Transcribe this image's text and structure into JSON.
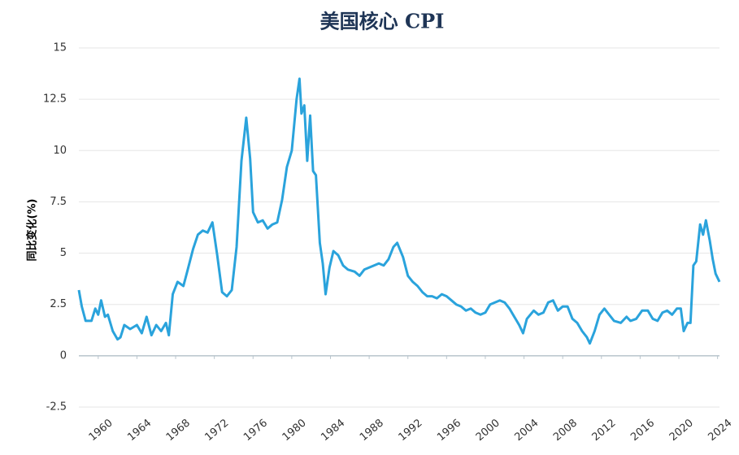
{
  "chart_data": {
    "type": "line",
    "title": "美国核心 CPI",
    "y_label": "同比变化(%)",
    "x": [
      1958.0,
      1958.3,
      1958.7,
      1959.3,
      1959.7,
      1960.0,
      1960.3,
      1960.7,
      1961.0,
      1961.5,
      1962.0,
      1962.3,
      1962.7,
      1963.3,
      1964.0,
      1964.5,
      1965.0,
      1965.5,
      1966.0,
      1966.5,
      1967.0,
      1967.3,
      1967.7,
      1968.2,
      1968.8,
      1969.2,
      1969.8,
      1970.3,
      1970.8,
      1971.3,
      1971.8,
      1972.3,
      1972.8,
      1973.3,
      1973.8,
      1974.3,
      1974.8,
      1975.3,
      1975.7,
      1976.0,
      1976.5,
      1977.0,
      1977.5,
      1978.0,
      1978.5,
      1979.0,
      1979.5,
      1980.0,
      1980.5,
      1980.8,
      1981.0,
      1981.3,
      1981.6,
      1981.9,
      1982.2,
      1982.5,
      1982.9,
      1983.2,
      1983.5,
      1983.9,
      1984.3,
      1984.8,
      1985.3,
      1985.8,
      1986.5,
      1987.0,
      1987.5,
      1988.0,
      1988.5,
      1989.0,
      1989.5,
      1990.0,
      1990.5,
      1990.9,
      1991.5,
      1992.0,
      1992.5,
      1993.0,
      1993.5,
      1994.0,
      1994.5,
      1995.0,
      1995.5,
      1996.0,
      1996.5,
      1997.0,
      1997.5,
      1998.0,
      1998.5,
      1999.0,
      1999.5,
      2000.0,
      2000.5,
      2001.0,
      2001.5,
      2002.0,
      2002.5,
      2003.0,
      2003.5,
      2003.9,
      2004.3,
      2005.0,
      2005.5,
      2006.0,
      2006.5,
      2007.0,
      2007.5,
      2008.0,
      2008.5,
      2009.0,
      2009.5,
      2010.0,
      2010.5,
      2010.8,
      2011.3,
      2011.8,
      2012.3,
      2012.8,
      2013.3,
      2014.0,
      2014.6,
      2015.0,
      2015.6,
      2016.2,
      2016.8,
      2017.3,
      2017.8,
      2018.3,
      2018.8,
      2019.3,
      2019.8,
      2020.2,
      2020.5,
      2020.9,
      2021.2,
      2021.5,
      2021.8,
      2022.2,
      2022.5,
      2022.8,
      2023.2,
      2023.5,
      2023.8,
      2024.2
    ],
    "series": [
      {
        "name": "核心CPI",
        "color": "#2aa3dc",
        "values": [
          3.2,
          2.4,
          1.7,
          1.7,
          2.3,
          2.0,
          2.7,
          1.9,
          2.0,
          1.2,
          0.8,
          0.9,
          1.5,
          1.3,
          1.5,
          1.1,
          1.9,
          1.0,
          1.5,
          1.2,
          1.6,
          1.0,
          3.0,
          3.6,
          3.4,
          4.1,
          5.2,
          5.9,
          6.1,
          6.0,
          6.5,
          4.9,
          3.1,
          2.9,
          3.2,
          5.3,
          9.5,
          11.6,
          9.6,
          7.0,
          6.5,
          6.6,
          6.2,
          6.4,
          6.5,
          7.6,
          9.2,
          10.0,
          12.5,
          13.5,
          11.8,
          12.2,
          9.5,
          11.7,
          9.0,
          8.8,
          5.5,
          4.5,
          3.0,
          4.3,
          5.1,
          4.9,
          4.4,
          4.2,
          4.1,
          3.9,
          4.2,
          4.3,
          4.4,
          4.5,
          4.4,
          4.7,
          5.3,
          5.5,
          4.8,
          3.9,
          3.6,
          3.4,
          3.1,
          2.9,
          2.9,
          2.8,
          3.0,
          2.9,
          2.7,
          2.5,
          2.4,
          2.2,
          2.3,
          2.1,
          2.0,
          2.1,
          2.5,
          2.6,
          2.7,
          2.6,
          2.3,
          1.9,
          1.5,
          1.1,
          1.8,
          2.2,
          2.0,
          2.1,
          2.6,
          2.7,
          2.2,
          2.4,
          2.4,
          1.8,
          1.6,
          1.2,
          0.9,
          0.6,
          1.2,
          2.0,
          2.3,
          2.0,
          1.7,
          1.6,
          1.9,
          1.7,
          1.8,
          2.2,
          2.2,
          1.8,
          1.7,
          2.1,
          2.2,
          2.0,
          2.3,
          2.3,
          1.2,
          1.6,
          1.6,
          4.4,
          4.6,
          6.4,
          5.9,
          6.6,
          5.6,
          4.7,
          4.0,
          3.6
        ]
      }
    ],
    "xlim": [
      1958,
      2024.2
    ],
    "xticks": [
      1960,
      1964,
      1968,
      1972,
      1976,
      1980,
      1984,
      1988,
      1992,
      1996,
      2000,
      2004,
      2008,
      2012,
      2016,
      2020,
      2024
    ],
    "ylim": [
      -2.5,
      15
    ],
    "yticks": [
      -2.5,
      0,
      2.5,
      5,
      7.5,
      10,
      12.5,
      15
    ],
    "grid": true
  }
}
